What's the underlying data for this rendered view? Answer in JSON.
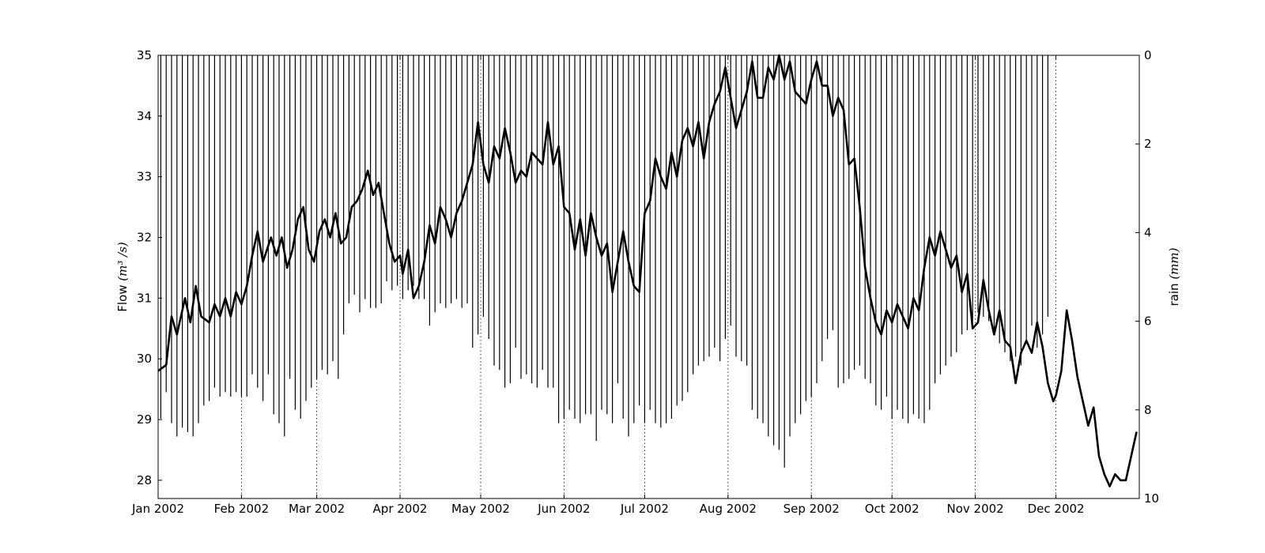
{
  "chart_data": {
    "type": "line",
    "title": "",
    "xlabel": "",
    "ylabel_left": {
      "text": "Flow ",
      "unit": "(m³ /s)"
    },
    "ylabel_right": {
      "text": "rain ",
      "unit": "(mm)"
    },
    "x_tick_labels": [
      "Jan 2002",
      "Feb 2002",
      "Mar 2002",
      "Apr 2002",
      "May 2002",
      "Jun 2002",
      "Jul 2002",
      "Aug 2002",
      "Sep 2002",
      "Oct 2002",
      "Nov 2002",
      "Dec 2002"
    ],
    "x_tick_dates": [
      "2002-01-01",
      "2002-02-01",
      "2002-03-01",
      "2002-04-01",
      "2002-05-01",
      "2002-06-01",
      "2002-07-01",
      "2002-08-01",
      "2002-09-01",
      "2002-10-01",
      "2002-11-01",
      "2002-12-01"
    ],
    "xlim": [
      "2002-01-01",
      "2002-12-31"
    ],
    "grid": "vertical dotted at month starts",
    "y_left": {
      "lim": [
        27.7,
        35
      ],
      "ticks": [
        "28",
        "29",
        "30",
        "31",
        "32",
        "33",
        "34",
        "35"
      ]
    },
    "y_right": {
      "lim": [
        10,
        0
      ],
      "inverted": true,
      "ticks": [
        "0",
        "2",
        "4",
        "6",
        "8",
        "10"
      ]
    },
    "series": [
      {
        "axis": "left",
        "style": "thick black line",
        "points": [
          [
            "2002-01-01",
            29.8
          ],
          [
            "2002-01-04",
            29.9
          ],
          [
            "2002-01-06",
            30.7
          ],
          [
            "2002-01-08",
            30.4
          ],
          [
            "2002-01-11",
            31.0
          ],
          [
            "2002-01-13",
            30.6
          ],
          [
            "2002-01-15",
            31.2
          ],
          [
            "2002-01-17",
            30.7
          ],
          [
            "2002-01-20",
            30.6
          ],
          [
            "2002-01-22",
            30.9
          ],
          [
            "2002-01-24",
            30.7
          ],
          [
            "2002-01-26",
            31.0
          ],
          [
            "2002-01-28",
            30.7
          ],
          [
            "2002-01-30",
            31.1
          ],
          [
            "2002-02-01",
            30.9
          ],
          [
            "2002-02-03",
            31.2
          ],
          [
            "2002-02-05",
            31.7
          ],
          [
            "2002-02-07",
            32.1
          ],
          [
            "2002-02-09",
            31.6
          ],
          [
            "2002-02-12",
            32.0
          ],
          [
            "2002-02-14",
            31.7
          ],
          [
            "2002-02-16",
            32.0
          ],
          [
            "2002-02-18",
            31.5
          ],
          [
            "2002-02-20",
            31.8
          ],
          [
            "2002-02-22",
            32.3
          ],
          [
            "2002-02-24",
            32.5
          ],
          [
            "2002-02-26",
            31.8
          ],
          [
            "2002-02-28",
            31.6
          ],
          [
            "2002-03-02",
            32.1
          ],
          [
            "2002-03-04",
            32.3
          ],
          [
            "2002-03-06",
            32.0
          ],
          [
            "2002-03-08",
            32.4
          ],
          [
            "2002-03-10",
            31.9
          ],
          [
            "2002-03-12",
            32.0
          ],
          [
            "2002-03-14",
            32.5
          ],
          [
            "2002-03-16",
            32.6
          ],
          [
            "2002-03-18",
            32.8
          ],
          [
            "2002-03-20",
            33.1
          ],
          [
            "2002-03-22",
            32.7
          ],
          [
            "2002-03-24",
            32.9
          ],
          [
            "2002-03-26",
            32.4
          ],
          [
            "2002-03-28",
            31.9
          ],
          [
            "2002-03-30",
            31.6
          ],
          [
            "2002-04-01",
            31.7
          ],
          [
            "2002-04-02",
            31.4
          ],
          [
            "2002-04-04",
            31.8
          ],
          [
            "2002-04-06",
            31.0
          ],
          [
            "2002-04-08",
            31.2
          ],
          [
            "2002-04-10",
            31.6
          ],
          [
            "2002-04-12",
            32.2
          ],
          [
            "2002-04-14",
            31.9
          ],
          [
            "2002-04-16",
            32.5
          ],
          [
            "2002-04-18",
            32.3
          ],
          [
            "2002-04-20",
            32.0
          ],
          [
            "2002-04-22",
            32.4
          ],
          [
            "2002-04-24",
            32.6
          ],
          [
            "2002-04-26",
            32.9
          ],
          [
            "2002-04-28",
            33.2
          ],
          [
            "2002-04-30",
            33.9
          ],
          [
            "2002-05-02",
            33.2
          ],
          [
            "2002-05-04",
            32.9
          ],
          [
            "2002-05-06",
            33.5
          ],
          [
            "2002-05-08",
            33.3
          ],
          [
            "2002-05-10",
            33.8
          ],
          [
            "2002-05-12",
            33.4
          ],
          [
            "2002-05-14",
            32.9
          ],
          [
            "2002-05-16",
            33.1
          ],
          [
            "2002-05-18",
            33.0
          ],
          [
            "2002-05-20",
            33.4
          ],
          [
            "2002-05-22",
            33.3
          ],
          [
            "2002-05-24",
            33.2
          ],
          [
            "2002-05-26",
            33.9
          ],
          [
            "2002-05-28",
            33.2
          ],
          [
            "2002-05-30",
            33.5
          ],
          [
            "2002-06-01",
            32.5
          ],
          [
            "2002-06-03",
            32.4
          ],
          [
            "2002-06-05",
            31.8
          ],
          [
            "2002-06-07",
            32.3
          ],
          [
            "2002-06-09",
            31.7
          ],
          [
            "2002-06-11",
            32.4
          ],
          [
            "2002-06-13",
            32.0
          ],
          [
            "2002-06-15",
            31.7
          ],
          [
            "2002-06-17",
            31.9
          ],
          [
            "2002-06-19",
            31.1
          ],
          [
            "2002-06-21",
            31.6
          ],
          [
            "2002-06-23",
            32.1
          ],
          [
            "2002-06-25",
            31.6
          ],
          [
            "2002-06-27",
            31.2
          ],
          [
            "2002-06-29",
            31.1
          ],
          [
            "2002-07-01",
            32.4
          ],
          [
            "2002-07-03",
            32.6
          ],
          [
            "2002-07-05",
            33.3
          ],
          [
            "2002-07-07",
            33.0
          ],
          [
            "2002-07-09",
            32.8
          ],
          [
            "2002-07-11",
            33.4
          ],
          [
            "2002-07-13",
            33.0
          ],
          [
            "2002-07-15",
            33.6
          ],
          [
            "2002-07-17",
            33.8
          ],
          [
            "2002-07-19",
            33.5
          ],
          [
            "2002-07-21",
            33.9
          ],
          [
            "2002-07-23",
            33.3
          ],
          [
            "2002-07-25",
            33.9
          ],
          [
            "2002-07-27",
            34.2
          ],
          [
            "2002-07-29",
            34.4
          ],
          [
            "2002-07-31",
            34.8
          ],
          [
            "2002-08-02",
            34.3
          ],
          [
            "2002-08-04",
            33.8
          ],
          [
            "2002-08-06",
            34.1
          ],
          [
            "2002-08-08",
            34.4
          ],
          [
            "2002-08-10",
            34.9
          ],
          [
            "2002-08-12",
            34.3
          ],
          [
            "2002-08-14",
            34.3
          ],
          [
            "2002-08-16",
            34.8
          ],
          [
            "2002-08-18",
            34.6
          ],
          [
            "2002-08-20",
            35.0
          ],
          [
            "2002-08-22",
            34.6
          ],
          [
            "2002-08-24",
            34.9
          ],
          [
            "2002-08-26",
            34.4
          ],
          [
            "2002-08-28",
            34.3
          ],
          [
            "2002-08-30",
            34.2
          ],
          [
            "2002-09-01",
            34.6
          ],
          [
            "2002-09-03",
            34.9
          ],
          [
            "2002-09-05",
            34.5
          ],
          [
            "2002-09-07",
            34.5
          ],
          [
            "2002-09-09",
            34.0
          ],
          [
            "2002-09-11",
            34.3
          ],
          [
            "2002-09-13",
            34.1
          ],
          [
            "2002-09-15",
            33.2
          ],
          [
            "2002-09-17",
            33.3
          ],
          [
            "2002-09-19",
            32.5
          ],
          [
            "2002-09-21",
            31.5
          ],
          [
            "2002-09-23",
            31.0
          ],
          [
            "2002-09-25",
            30.6
          ],
          [
            "2002-09-27",
            30.4
          ],
          [
            "2002-09-29",
            30.8
          ],
          [
            "2002-10-01",
            30.6
          ],
          [
            "2002-10-03",
            30.9
          ],
          [
            "2002-10-05",
            30.7
          ],
          [
            "2002-10-07",
            30.5
          ],
          [
            "2002-10-09",
            31.0
          ],
          [
            "2002-10-11",
            30.8
          ],
          [
            "2002-10-13",
            31.5
          ],
          [
            "2002-10-15",
            32.0
          ],
          [
            "2002-10-17",
            31.7
          ],
          [
            "2002-10-19",
            32.1
          ],
          [
            "2002-10-21",
            31.8
          ],
          [
            "2002-10-23",
            31.5
          ],
          [
            "2002-10-25",
            31.7
          ],
          [
            "2002-10-27",
            31.1
          ],
          [
            "2002-10-29",
            31.4
          ],
          [
            "2002-10-31",
            30.5
          ],
          [
            "2002-11-02",
            30.6
          ],
          [
            "2002-11-04",
            31.3
          ],
          [
            "2002-11-06",
            30.8
          ],
          [
            "2002-11-08",
            30.4
          ],
          [
            "2002-11-10",
            30.8
          ],
          [
            "2002-11-12",
            30.3
          ],
          [
            "2002-11-14",
            30.2
          ],
          [
            "2002-11-16",
            29.6
          ],
          [
            "2002-11-18",
            30.1
          ],
          [
            "2002-11-20",
            30.3
          ],
          [
            "2002-11-22",
            30.1
          ],
          [
            "2002-11-24",
            30.6
          ],
          [
            "2002-11-26",
            30.2
          ],
          [
            "2002-11-28",
            29.6
          ],
          [
            "2002-11-30",
            29.3
          ],
          [
            "2002-12-01",
            29.4
          ],
          [
            "2002-12-03",
            29.8
          ],
          [
            "2002-12-05",
            30.8
          ],
          [
            "2002-12-07",
            30.3
          ],
          [
            "2002-12-09",
            29.7
          ],
          [
            "2002-12-11",
            29.3
          ],
          [
            "2002-12-13",
            28.9
          ],
          [
            "2002-12-15",
            29.2
          ],
          [
            "2002-12-17",
            28.4
          ],
          [
            "2002-12-19",
            28.1
          ],
          [
            "2002-12-21",
            27.9
          ],
          [
            "2002-12-23",
            28.1
          ],
          [
            "2002-12-25",
            28.0
          ],
          [
            "2002-12-27",
            28.0
          ],
          [
            "2002-12-29",
            28.4
          ],
          [
            "2002-12-31",
            28.8
          ]
        ]
      },
      {
        "axis": "right",
        "style": "vertical stems hanging from top",
        "date_start": "2002-01-02",
        "interval_days": 2,
        "values": [
          8.2,
          7.6,
          8.3,
          8.6,
          8.4,
          8.5,
          8.6,
          8.3,
          7.9,
          7.8,
          7.5,
          7.7,
          7.6,
          7.7,
          7.6,
          7.7,
          7.7,
          7.2,
          7.5,
          7.8,
          7.2,
          8.1,
          8.3,
          8.6,
          7.3,
          8.0,
          8.2,
          7.8,
          7.5,
          7.3,
          7.1,
          7.2,
          6.9,
          7.3,
          6.3,
          5.6,
          5.4,
          5.8,
          5.5,
          5.7,
          5.7,
          5.6,
          5.1,
          5.3,
          5.2,
          5.5,
          5.3,
          5.2,
          5.5,
          5.5,
          6.1,
          5.8,
          5.6,
          5.7,
          5.6,
          5.5,
          5.7,
          5.6,
          6.6,
          6.3,
          5.9,
          6.4,
          7.0,
          7.1,
          7.5,
          7.4,
          6.6,
          7.3,
          7.2,
          7.4,
          7.5,
          7.1,
          7.5,
          7.5,
          8.3,
          8.2,
          8.0,
          8.2,
          8.3,
          8.1,
          8.1,
          8.7,
          8.0,
          8.1,
          8.3,
          7.4,
          8.2,
          8.6,
          8.3,
          7.9,
          8.3,
          8.0,
          8.3,
          8.4,
          8.3,
          8.2,
          7.9,
          7.8,
          7.6,
          7.2,
          7.0,
          6.9,
          6.8,
          6.6,
          6.9,
          6.4,
          6.1,
          6.8,
          6.9,
          7.0,
          8.0,
          8.2,
          8.3,
          8.6,
          8.8,
          8.9,
          9.3,
          8.6,
          8.3,
          8.1,
          7.8,
          7.7,
          7.4,
          6.9,
          6.4,
          6.2,
          7.5,
          7.4,
          7.3,
          7.1,
          7.0,
          7.3,
          7.4,
          7.9,
          8.0,
          7.7,
          8.2,
          8.0,
          8.2,
          8.3,
          8.1,
          8.2,
          8.3,
          8.0,
          7.4,
          7.2,
          7.0,
          6.8,
          6.7,
          6.3,
          6.2,
          6.0,
          5.8,
          5.9,
          6.0,
          6.3,
          6.5,
          6.7,
          6.9,
          6.8,
          7.0,
          6.5,
          6.1,
          6.6,
          6.3,
          5.9
        ]
      }
    ]
  }
}
